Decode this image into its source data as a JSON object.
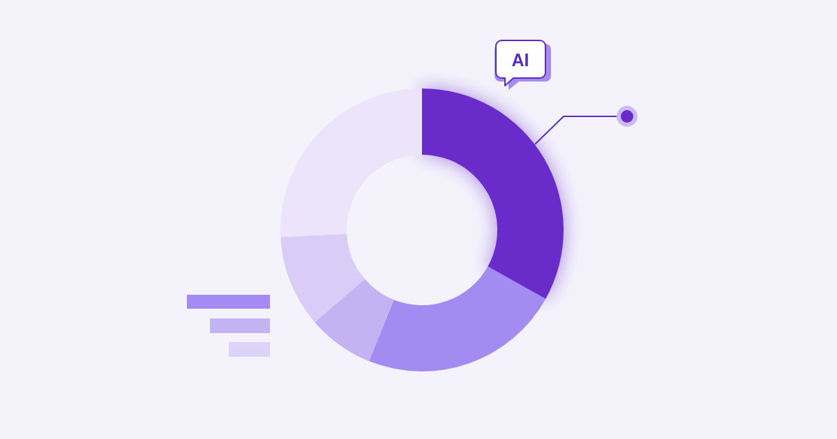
{
  "chart_data": {
    "type": "donut",
    "categories": [
      null,
      null,
      null,
      null,
      null
    ],
    "values": [
      33.1,
      23.0,
      7.6,
      10.5,
      25.8
    ],
    "colors": [
      "#6a2bcb",
      "#a48bf1",
      "#c4b3f2",
      "#d9cdf8",
      "#ebe4fb"
    ],
    "annotations": [
      "AI"
    ]
  }
}
